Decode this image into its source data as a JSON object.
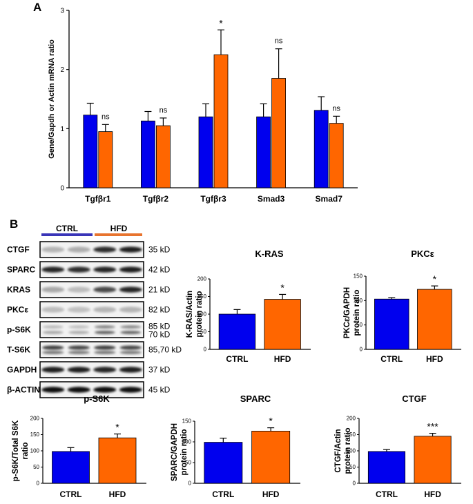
{
  "panel_labels": {
    "a": "A",
    "b": "B"
  },
  "colors": {
    "ctrl": "#0000ee",
    "hfd": "#ff6600",
    "axis": "#000000",
    "ctrl_line": "#3a35b8",
    "hfd_line": "#e8742e"
  },
  "blot": {
    "groups": {
      "ctrl": "CTRL",
      "hfd": "HFD"
    },
    "rows": [
      {
        "label": "CTGF",
        "kd": "35 kD"
      },
      {
        "label": "SPARC",
        "kd": "42 kD"
      },
      {
        "label": "KRAS",
        "kd": "21 kD"
      },
      {
        "label": "PKCε",
        "kd": "82 kD"
      },
      {
        "label": "p-S6K",
        "kd": "85 kD",
        "kd2": "70 kD"
      },
      {
        "label": "T-S6K",
        "kd": "85,70 kD"
      },
      {
        "label": "GAPDH",
        "kd": "37 kD"
      },
      {
        "label": "β-ACTIN",
        "kd": "45 kD"
      }
    ]
  },
  "chart_data": [
    {
      "id": "A",
      "type": "bar",
      "title": "",
      "xlabel": "",
      "ylabel": "Gene/Gapdh or Actin mRNA ratio",
      "ylim": [
        0,
        3
      ],
      "yticks": [
        "0",
        "1",
        "2",
        "3"
      ],
      "categories": [
        "Tgfβr1",
        "Tgfβr2",
        "Tgfβr3",
        "Smad3",
        "Smad7"
      ],
      "series": [
        {
          "name": "CTRL",
          "values": [
            1.23,
            1.13,
            1.2,
            1.2,
            1.31
          ],
          "errors": [
            0.2,
            0.16,
            0.22,
            0.22,
            0.23
          ]
        },
        {
          "name": "HFD",
          "values": [
            0.95,
            1.05,
            2.25,
            1.85,
            1.09
          ],
          "errors": [
            0.12,
            0.13,
            0.42,
            0.5,
            0.12
          ]
        }
      ],
      "significance": [
        "ns",
        "ns",
        "*",
        "ns",
        "ns"
      ]
    },
    {
      "id": "K-RAS",
      "type": "bar",
      "title": "K-RAS",
      "ylabel": [
        "K-RAS/Actin",
        "protein ratio"
      ],
      "ylim": [
        0,
        200
      ],
      "yticks": [
        "0",
        "50",
        "100",
        "150",
        "200"
      ],
      "categories": [
        "CTRL",
        "HFD"
      ],
      "values": [
        100,
        142
      ],
      "errors": [
        13,
        14
      ],
      "significance": "*"
    },
    {
      "id": "PKCe",
      "type": "bar",
      "title": "PKCε",
      "ylabel": [
        "PKCε/GAPDH",
        "protein ratio"
      ],
      "ylim": [
        0,
        150
      ],
      "yticks": [
        "0",
        "50",
        "100",
        "150"
      ],
      "categories": [
        "CTRL",
        "HFD"
      ],
      "values": [
        103,
        123
      ],
      "errors": [
        3,
        7
      ],
      "significance": "*"
    },
    {
      "id": "p-S6K",
      "type": "bar",
      "title": "p-S6K",
      "ylabel": [
        "p-S6K/Total S6K",
        "ratio"
      ],
      "ylim": [
        0,
        200
      ],
      "yticks": [
        "0",
        "50",
        "100",
        "150",
        "200"
      ],
      "categories": [
        "CTRL",
        "HFD"
      ],
      "values": [
        98,
        140
      ],
      "errors": [
        12,
        12
      ],
      "significance": "*"
    },
    {
      "id": "SPARC",
      "type": "bar",
      "title": "SPARC",
      "ylabel": [
        "SPARC/GAPDH",
        "protein ratio"
      ],
      "ylim": [
        0,
        150
      ],
      "yticks": [
        "0",
        "50",
        "100",
        "150"
      ],
      "categories": [
        "CTRL",
        "HFD"
      ],
      "values": [
        99,
        126
      ],
      "errors": [
        10,
        8
      ],
      "significance": "*"
    },
    {
      "id": "CTGF",
      "type": "bar",
      "title": "CTGF",
      "ylabel": [
        "CTGF/Actin",
        "protein ratio"
      ],
      "ylim": [
        0,
        200
      ],
      "yticks": [
        "0",
        "50",
        "100",
        "150",
        "200"
      ],
      "categories": [
        "CTRL",
        "HFD"
      ],
      "values": [
        98,
        145
      ],
      "errors": [
        6,
        9
      ],
      "significance": "***"
    }
  ]
}
